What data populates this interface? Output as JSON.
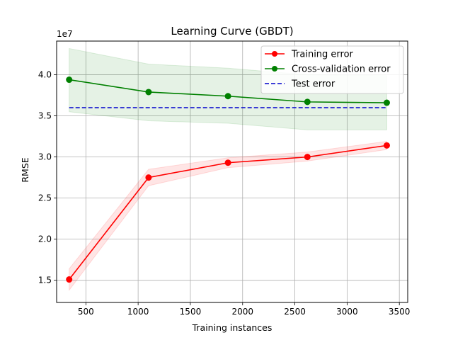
{
  "chart_data": {
    "type": "line",
    "title": "Learning Curve (GBDT)",
    "xlabel": "Training instances",
    "ylabel": "RMSE",
    "y_scale_label": "1e7",
    "xlim": [
      220,
      3580
    ],
    "ylim": [
      1.23,
      4.41
    ],
    "x_ticks": [
      500,
      1000,
      1500,
      2000,
      2500,
      3000,
      3500
    ],
    "y_ticks": [
      1.5,
      2.0,
      2.5,
      3.0,
      3.5,
      4.0
    ],
    "x_tick_labels": [
      "500",
      "1000",
      "1500",
      "2000",
      "2500",
      "3000",
      "3500"
    ],
    "y_tick_labels": [
      "1.5",
      "2.0",
      "2.5",
      "3.0",
      "3.5",
      "4.0"
    ],
    "grid": true,
    "legend_position": "top-right",
    "x": [
      340,
      1100,
      1860,
      2620,
      3380
    ],
    "series": [
      {
        "name": "Training error",
        "color": "#ff0000",
        "style": "solid-marker",
        "values": [
          1.51,
          2.75,
          2.93,
          3.0,
          3.14
        ],
        "band_lower": [
          1.38,
          2.65,
          2.87,
          2.95,
          3.09
        ],
        "band_upper": [
          1.64,
          2.85,
          2.99,
          3.06,
          3.19
        ]
      },
      {
        "name": "Cross-validation error",
        "color": "#008000",
        "style": "solid-marker",
        "values": [
          3.94,
          3.79,
          3.74,
          3.67,
          3.66
        ],
        "band_lower": [
          3.55,
          3.44,
          3.41,
          3.33,
          3.33
        ],
        "band_upper": [
          4.32,
          4.13,
          4.08,
          4.0,
          3.99
        ]
      },
      {
        "name": "Test error",
        "color": "#0000cd",
        "style": "dashed",
        "values": [
          3.6,
          3.6,
          3.6,
          3.6,
          3.6
        ]
      }
    ]
  }
}
